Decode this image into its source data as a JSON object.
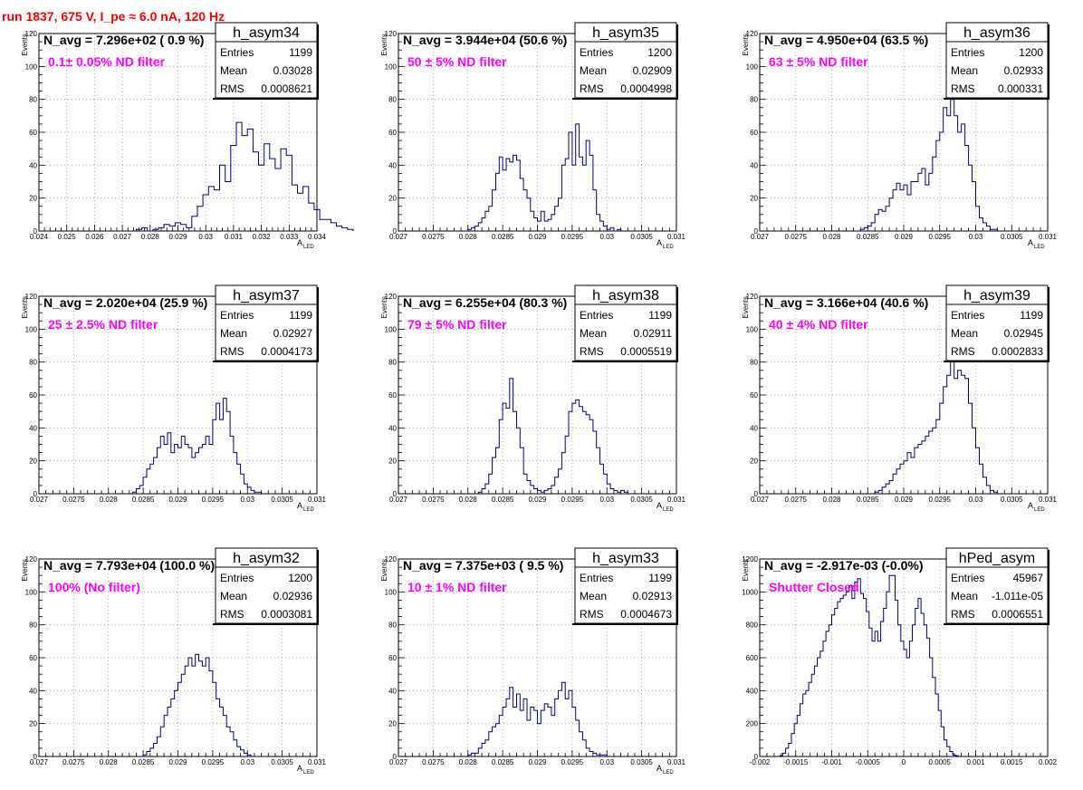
{
  "run_title": "run 1837,   675 V, I_pe ≈ 6.0 nA, 120 Hz",
  "colors": {
    "title": "#ff0000",
    "filter_label": "#ff00ff",
    "histogram": "#00007f",
    "grid": "#9a9a9a"
  },
  "stats_labels": {
    "entries": "Entries",
    "mean": "Mean",
    "rms": "RMS"
  },
  "chart_data": [
    {
      "type": "histogram",
      "name": "h_asym34",
      "n_avg": "N_avg = 7.296e+02 ( 0.9 %)",
      "filter": "0.1± 0.05% ND filter",
      "entries": "1199",
      "mean": "0.03028",
      "rms": "0.0008621",
      "xlabel": "A",
      "xlabel_sub": "LED",
      "ylabel": "Events",
      "xlim": [
        0.024,
        0.034
      ],
      "ylim": [
        0,
        120
      ],
      "xticks": [
        "0.024",
        "0.025",
        "0.026",
        "0.027",
        "0.028",
        "0.029",
        "0.03",
        "0.031",
        "0.032",
        "0.033",
        "0.034"
      ],
      "yticks": [
        "0",
        "20",
        "40",
        "60",
        "80",
        "100",
        "120"
      ],
      "bins": {
        "start": 0.0275,
        "width": 0.0002,
        "counts": [
          1,
          2,
          0,
          1,
          2,
          4,
          3,
          5,
          4,
          2,
          9,
          15,
          22,
          27,
          25,
          40,
          30,
          52,
          66,
          58,
          62,
          48,
          40,
          53,
          44,
          38,
          50,
          46,
          28,
          23,
          27,
          17,
          13,
          7,
          7,
          5,
          3,
          2,
          1
        ]
      }
    },
    {
      "type": "histogram",
      "name": "h_asym35",
      "n_avg": "N_avg = 3.944e+04 (50.6 %)",
      "filter": "50 ± 5% ND filter",
      "entries": "1200",
      "mean": "0.02909",
      "rms": "0.0004998",
      "xlabel": "A",
      "xlabel_sub": "LED",
      "ylabel": "Events",
      "xlim": [
        0.027,
        0.031
      ],
      "ylim": [
        0,
        120
      ],
      "xticks": [
        "0.027",
        "0.0275",
        "0.028",
        "0.0285",
        "0.029",
        "0.0295",
        "0.03",
        "0.0305",
        "0.031"
      ],
      "yticks": [
        "0",
        "20",
        "40",
        "60",
        "80",
        "100",
        "120"
      ],
      "bins": {
        "start": 0.028,
        "width": 5e-05,
        "counts": [
          1,
          2,
          3,
          5,
          8,
          12,
          15,
          25,
          35,
          45,
          37,
          44,
          42,
          46,
          43,
          32,
          25,
          20,
          12,
          8,
          6,
          12,
          6,
          7,
          10,
          15,
          20,
          40,
          44,
          60,
          40,
          65,
          45,
          40,
          55,
          46,
          25,
          10,
          6,
          3,
          1,
          2,
          0,
          1
        ]
      }
    },
    {
      "type": "histogram",
      "name": "h_asym36",
      "n_avg": "N_avg = 4.950e+04 (63.5 %)",
      "filter": "63 ± 5% ND filter",
      "entries": "1200",
      "mean": "0.02933",
      "rms": "0.000331",
      "xlabel": "A",
      "xlabel_sub": "LED",
      "ylabel": "Events",
      "xlim": [
        0.027,
        0.031
      ],
      "ylim": [
        0,
        120
      ],
      "xticks": [
        "0.027",
        "0.0275",
        "0.028",
        "0.0285",
        "0.029",
        "0.0295",
        "0.03",
        "0.0305",
        "0.031"
      ],
      "yticks": [
        "0",
        "20",
        "40",
        "60",
        "80",
        "100",
        "120"
      ],
      "bins": {
        "start": 0.0284,
        "width": 5e-05,
        "counts": [
          1,
          2,
          3,
          5,
          10,
          13,
          12,
          15,
          20,
          25,
          29,
          25,
          28,
          22,
          30,
          30,
          35,
          38,
          28,
          35,
          45,
          55,
          60,
          75,
          70,
          80,
          70,
          60,
          65,
          52,
          40,
          30,
          15,
          8,
          5,
          3,
          1,
          1
        ]
      }
    },
    {
      "type": "histogram",
      "name": "h_asym37",
      "n_avg": "N_avg = 2.020e+04 (25.9 %)",
      "filter": "25 ± 2.5% ND filter",
      "entries": "1199",
      "mean": "0.02927",
      "rms": "0.0004173",
      "xlabel": "A",
      "xlabel_sub": "LED",
      "ylabel": "Events",
      "xlim": [
        0.027,
        0.031
      ],
      "ylim": [
        0,
        120
      ],
      "xticks": [
        "0.027",
        "0.0275",
        "0.028",
        "0.0285",
        "0.029",
        "0.0295",
        "0.03",
        "0.0305",
        "0.031"
      ],
      "yticks": [
        "0",
        "20",
        "40",
        "60",
        "80",
        "100",
        "120"
      ],
      "bins": {
        "start": 0.02835,
        "width": 5e-05,
        "counts": [
          1,
          3,
          5,
          10,
          15,
          18,
          22,
          28,
          35,
          30,
          37,
          25,
          30,
          28,
          35,
          30,
          28,
          22,
          25,
          28,
          30,
          35,
          30,
          45,
          55,
          45,
          58,
          50,
          35,
          25,
          18,
          12,
          6,
          4,
          2,
          1,
          1
        ]
      }
    },
    {
      "type": "histogram",
      "name": "h_asym38",
      "n_avg": "N_avg = 6.255e+04 (80.3 %)",
      "filter": "79 ± 5% ND filter",
      "entries": "1199",
      "mean": "0.02911",
      "rms": "0.0005519",
      "xlabel": "A",
      "xlabel_sub": "LED",
      "ylabel": "Events",
      "xlim": [
        0.027,
        0.031
      ],
      "ylim": [
        0,
        120
      ],
      "xticks": [
        "0.027",
        "0.0275",
        "0.028",
        "0.0285",
        "0.029",
        "0.0295",
        "0.03",
        "0.0305",
        "0.031"
      ],
      "yticks": [
        "0",
        "20",
        "40",
        "60",
        "80",
        "100",
        "120"
      ],
      "bins": {
        "start": 0.02815,
        "width": 5e-05,
        "counts": [
          1,
          3,
          6,
          12,
          22,
          28,
          45,
          55,
          52,
          70,
          50,
          40,
          28,
          12,
          8,
          5,
          3,
          2,
          1,
          2,
          3,
          5,
          10,
          15,
          25,
          35,
          50,
          55,
          57,
          53,
          50,
          48,
          45,
          38,
          28,
          18,
          12,
          6,
          3,
          2,
          1,
          2,
          1
        ]
      }
    },
    {
      "type": "histogram",
      "name": "h_asym39",
      "n_avg": "N_avg = 3.166e+04 (40.6 %)",
      "filter": "40 ± 4% ND filter",
      "entries": "1199",
      "mean": "0.02945",
      "rms": "0.0002833",
      "xlabel": "A",
      "xlabel_sub": "LED",
      "ylabel": "Events",
      "xlim": [
        0.027,
        0.031
      ],
      "ylim": [
        0,
        120
      ],
      "xticks": [
        "0.027",
        "0.0275",
        "0.028",
        "0.0285",
        "0.029",
        "0.0295",
        "0.03",
        "0.0305",
        "0.031"
      ],
      "yticks": [
        "0",
        "20",
        "40",
        "60",
        "80",
        "100",
        "120"
      ],
      "bins": {
        "start": 0.0286,
        "width": 5e-05,
        "counts": [
          1,
          2,
          4,
          6,
          8,
          12,
          15,
          18,
          20,
          25,
          22,
          28,
          30,
          32,
          35,
          38,
          40,
          45,
          55,
          65,
          72,
          82,
          70,
          75,
          72,
          70,
          55,
          40,
          28,
          18,
          10,
          5,
          2,
          1
        ]
      }
    },
    {
      "type": "histogram",
      "name": "h_asym32",
      "n_avg": "N_avg = 7.793e+04 (100.0 %)",
      "filter": "100% (No filter)",
      "entries": "1200",
      "mean": "0.02936",
      "rms": "0.0003081",
      "xlabel": "A",
      "xlabel_sub": "LED",
      "ylabel": "Events",
      "xlim": [
        0.027,
        0.031
      ],
      "ylim": [
        0,
        120
      ],
      "xticks": [
        "0.027",
        "0.0275",
        "0.028",
        "0.0285",
        "0.029",
        "0.0295",
        "0.03",
        "0.0305",
        "0.031"
      ],
      "yticks": [
        "0",
        "20",
        "40",
        "60",
        "80",
        "100",
        "120"
      ],
      "bins": {
        "start": 0.0285,
        "width": 5e-05,
        "counts": [
          1,
          3,
          5,
          8,
          12,
          18,
          25,
          30,
          35,
          40,
          45,
          50,
          55,
          60,
          55,
          62,
          58,
          55,
          60,
          52,
          45,
          35,
          30,
          25,
          18,
          15,
          10,
          6,
          4,
          2,
          1
        ]
      }
    },
    {
      "type": "histogram",
      "name": "h_asym33",
      "n_avg": "N_avg = 7.375e+03 ( 9.5 %)",
      "filter": "10 ± 1% ND filter",
      "entries": "1199",
      "mean": "0.02913",
      "rms": "0.0004673",
      "xlabel": "A",
      "xlabel_sub": "LED",
      "ylabel": "Events",
      "xlim": [
        0.027,
        0.031
      ],
      "ylim": [
        0,
        120
      ],
      "xticks": [
        "0.027",
        "0.0275",
        "0.028",
        "0.0285",
        "0.029",
        "0.0295",
        "0.03",
        "0.0305",
        "0.031"
      ],
      "yticks": [
        "0",
        "20",
        "40",
        "60",
        "80",
        "100",
        "120"
      ],
      "bins": {
        "start": 0.028,
        "width": 5e-05,
        "counts": [
          1,
          2,
          2,
          5,
          8,
          10,
          15,
          18,
          20,
          25,
          30,
          35,
          42,
          30,
          38,
          28,
          35,
          22,
          30,
          28,
          20,
          28,
          32,
          30,
          25,
          35,
          40,
          45,
          35,
          40,
          30,
          22,
          15,
          10,
          5,
          3,
          2,
          1,
          1,
          1
        ]
      }
    },
    {
      "type": "histogram",
      "name": "hPed_asym",
      "n_avg": "N_avg = -2.917e-03 (-0.0%)",
      "filter": "Shutter Closed",
      "entries": "45967",
      "mean": "-1.011e-05",
      "rms": "0.0006551",
      "xlabel": "",
      "xlabel_sub": "",
      "ylabel": "Events",
      "xlim": [
        -0.002,
        0.002
      ],
      "ylim": [
        0,
        1200
      ],
      "xticks": [
        "-0.002",
        "-0.0015",
        "-0.001",
        "-0.0005",
        "0",
        "0.0005",
        "0.001",
        "0.0015",
        "0.002"
      ],
      "yticks": [
        "0",
        "200",
        "400",
        "600",
        "800",
        "1000",
        "1200"
      ],
      "bins": {
        "start": -0.00172,
        "width": 4e-05,
        "counts": [
          5,
          20,
          50,
          80,
          140,
          200,
          250,
          320,
          380,
          400,
          450,
          500,
          550,
          600,
          640,
          700,
          760,
          800,
          860,
          900,
          940,
          960,
          980,
          1000,
          1040,
          960,
          1060,
          1080,
          990,
          960,
          880,
          780,
          700,
          760,
          700,
          820,
          900,
          1000,
          1100,
          1100,
          950,
          800,
          700,
          650,
          600,
          700,
          800,
          900,
          960,
          870,
          800,
          720,
          600,
          480,
          380,
          280,
          180,
          100,
          60,
          30,
          10,
          5
        ]
      }
    }
  ]
}
